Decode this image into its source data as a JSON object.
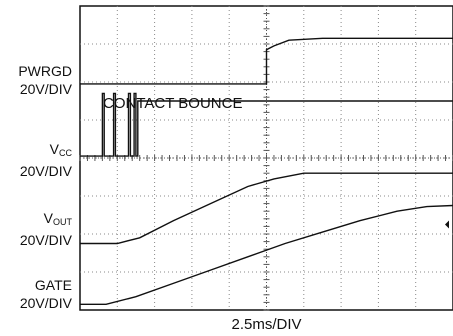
{
  "chart_data": {
    "type": "line",
    "title": "",
    "xlabel": "2.5ms/DIV",
    "ylabel": "",
    "grid": true,
    "divisions": {
      "x": 10,
      "y": 8
    },
    "xlim": [
      0,
      10
    ],
    "ylim": [
      0,
      8
    ],
    "annotations": [
      {
        "text": "CONTACT BOUNCE"
      }
    ],
    "channels": [
      {
        "name": "PWRGD",
        "scale": "20V/DIV"
      },
      {
        "name": "V",
        "name_sub": "CC",
        "scale": "20V/DIV"
      },
      {
        "name": "V",
        "name_sub": "OUT",
        "scale": "20V/DIV"
      },
      {
        "name": "GATE",
        "scale": "20V/DIV"
      }
    ],
    "series": [
      {
        "channel": "PWRGD",
        "x": [
          0,
          5.0,
          5.0,
          5.2,
          5.6,
          6.5,
          10
        ],
        "y": [
          5.95,
          5.95,
          6.85,
          6.95,
          7.1,
          7.15,
          7.15
        ]
      },
      {
        "channel": "VCC",
        "x": [
          0,
          0.6,
          0.6,
          0.65,
          0.65,
          0.9,
          0.9,
          0.95,
          0.95,
          1.3,
          1.3,
          1.35,
          1.35,
          1.45,
          1.45,
          1.5,
          1.5,
          1.55,
          1.55,
          10
        ],
        "y": [
          4.05,
          4.05,
          5.7,
          5.7,
          4.05,
          4.05,
          5.7,
          5.7,
          4.05,
          4.05,
          5.7,
          5.7,
          4.05,
          4.05,
          5.7,
          5.7,
          4.05,
          4.05,
          5.5,
          5.5
        ]
      },
      {
        "channel": "VOUT",
        "x": [
          0,
          1.0,
          1.6,
          2.5,
          3.5,
          4.5,
          5.2,
          6.0,
          7.0,
          10
        ],
        "y": [
          1.75,
          1.75,
          1.9,
          2.35,
          2.8,
          3.25,
          3.45,
          3.6,
          3.6,
          3.6
        ]
      },
      {
        "channel": "GATE",
        "x": [
          0,
          0.7,
          1.5,
          2.5,
          3.5,
          4.5,
          5.5,
          6.5,
          7.5,
          8.5,
          9.3,
          10
        ],
        "y": [
          0.15,
          0.15,
          0.35,
          0.7,
          1.05,
          1.4,
          1.75,
          2.05,
          2.35,
          2.6,
          2.72,
          2.75
        ]
      }
    ],
    "marker": {
      "channel": "GATE",
      "y": 2.25,
      "side": "right"
    }
  }
}
